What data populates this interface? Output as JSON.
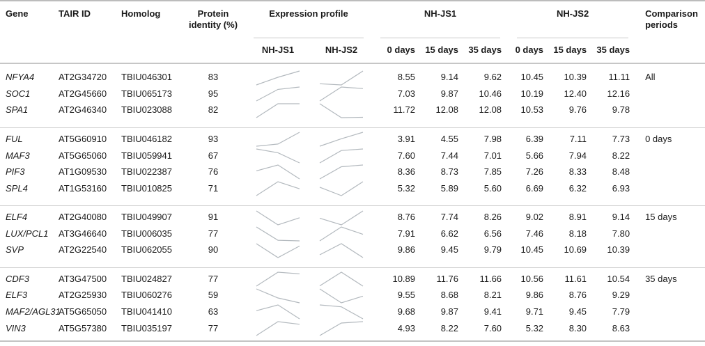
{
  "table": {
    "headers": {
      "gene": "Gene",
      "tair_id": "TAIR ID",
      "homolog": "Homolog",
      "protein_identity": "Protein identity (%)",
      "expression_profile": "Expression profile",
      "nh_js1": "NH-JS1",
      "nh_js2": "NH-JS2",
      "day_cols": [
        "0 days",
        "15 days",
        "35 days"
      ],
      "comparison_periods": "Comparison periods"
    },
    "groups": [
      {
        "comparison_period": "All",
        "rows": [
          {
            "gene": "NFYA4",
            "tair_id": "AT2G34720",
            "homolog": "TBIU046301",
            "protein_identity": "83",
            "values_nh_js1": [
              "8.55",
              "9.14",
              "9.62"
            ],
            "values_nh_js2": [
              "10.45",
              "10.39",
              "11.11"
            ]
          },
          {
            "gene": "SOC1",
            "tair_id": "AT2G45660",
            "homolog": "TBIU065173",
            "protein_identity": "95",
            "values_nh_js1": [
              "7.03",
              "9.87",
              "10.46"
            ],
            "values_nh_js2": [
              "10.19",
              "12.40",
              "12.16"
            ]
          },
          {
            "gene": "SPA1",
            "tair_id": "AT2G46340",
            "homolog": "TBIU023088",
            "protein_identity": "82",
            "values_nh_js1": [
              "11.72",
              "12.08",
              "12.08"
            ],
            "values_nh_js2": [
              "10.53",
              "9.76",
              "9.78"
            ]
          }
        ]
      },
      {
        "comparison_period": "0 days",
        "rows": [
          {
            "gene": "FUL",
            "tair_id": "AT5G60910",
            "homolog": "TBIU046182",
            "protein_identity": "93",
            "values_nh_js1": [
              "3.91",
              "4.55",
              "7.98"
            ],
            "values_nh_js2": [
              "6.39",
              "7.11",
              "7.73"
            ]
          },
          {
            "gene": "MAF3",
            "tair_id": "AT5G65060",
            "homolog": "TBIU059941",
            "protein_identity": "67",
            "values_nh_js1": [
              "7.60",
              "7.44",
              "7.01"
            ],
            "values_nh_js2": [
              "5.66",
              "7.94",
              "8.22"
            ]
          },
          {
            "gene": "PIF3",
            "tair_id": "AT1G09530",
            "homolog": "TBIU022387",
            "protein_identity": "76",
            "values_nh_js1": [
              "8.36",
              "8.73",
              "7.85"
            ],
            "values_nh_js2": [
              "7.26",
              "8.33",
              "8.48"
            ]
          },
          {
            "gene": "SPL4",
            "tair_id": "AT1G53160",
            "homolog": "TBIU010825",
            "protein_identity": "71",
            "values_nh_js1": [
              "5.32",
              "5.89",
              "5.60"
            ],
            "values_nh_js2": [
              "6.69",
              "6.32",
              "6.93"
            ]
          }
        ]
      },
      {
        "comparison_period": "15 days",
        "rows": [
          {
            "gene": "ELF4",
            "tair_id": "AT2G40080",
            "homolog": "TBIU049907",
            "protein_identity": "91",
            "values_nh_js1": [
              "8.76",
              "7.74",
              "8.26"
            ],
            "values_nh_js2": [
              "9.02",
              "8.91",
              "9.14"
            ]
          },
          {
            "gene": "LUX/PCL1",
            "tair_id": "AT3G46640",
            "homolog": "TBIU006035",
            "protein_identity": "77",
            "values_nh_js1": [
              "7.91",
              "6.62",
              "6.56"
            ],
            "values_nh_js2": [
              "7.46",
              "8.18",
              "7.80"
            ]
          },
          {
            "gene": "SVP",
            "tair_id": "AT2G22540",
            "homolog": "TBIU062055",
            "protein_identity": "90",
            "values_nh_js1": [
              "9.86",
              "9.45",
              "9.79"
            ],
            "values_nh_js2": [
              "10.45",
              "10.69",
              "10.39"
            ]
          }
        ]
      },
      {
        "comparison_period": "35 days",
        "rows": [
          {
            "gene": "CDF3",
            "tair_id": "AT3G47500",
            "homolog": "TBIU024827",
            "protein_identity": "77",
            "values_nh_js1": [
              "10.89",
              "11.76",
              "11.66"
            ],
            "values_nh_js2": [
              "10.56",
              "11.61",
              "10.54"
            ]
          },
          {
            "gene": "ELF3",
            "tair_id": "AT2G25930",
            "homolog": "TBIU060276",
            "protein_identity": "59",
            "values_nh_js1": [
              "9.55",
              "8.68",
              "8.21"
            ],
            "values_nh_js2": [
              "9.86",
              "8.76",
              "9.29"
            ]
          },
          {
            "gene": "MAF2/AGL31",
            "tair_id": "AT5G65050",
            "homolog": "TBIU041410",
            "protein_identity": "63",
            "values_nh_js1": [
              "9.68",
              "9.87",
              "9.41"
            ],
            "values_nh_js2": [
              "9.71",
              "9.45",
              "7.79"
            ]
          },
          {
            "gene": "VIN3",
            "tair_id": "AT5G57380",
            "homolog": "TBIU035197",
            "protein_identity": "77",
            "values_nh_js1": [
              "4.93",
              "8.22",
              "7.60"
            ],
            "values_nh_js2": [
              "5.32",
              "8.30",
              "8.63"
            ]
          }
        ]
      }
    ]
  },
  "style": {
    "sparkline_color": "#b3b9be",
    "rule_color": "#c6c6c6",
    "text_color": "#1b1b1b"
  }
}
